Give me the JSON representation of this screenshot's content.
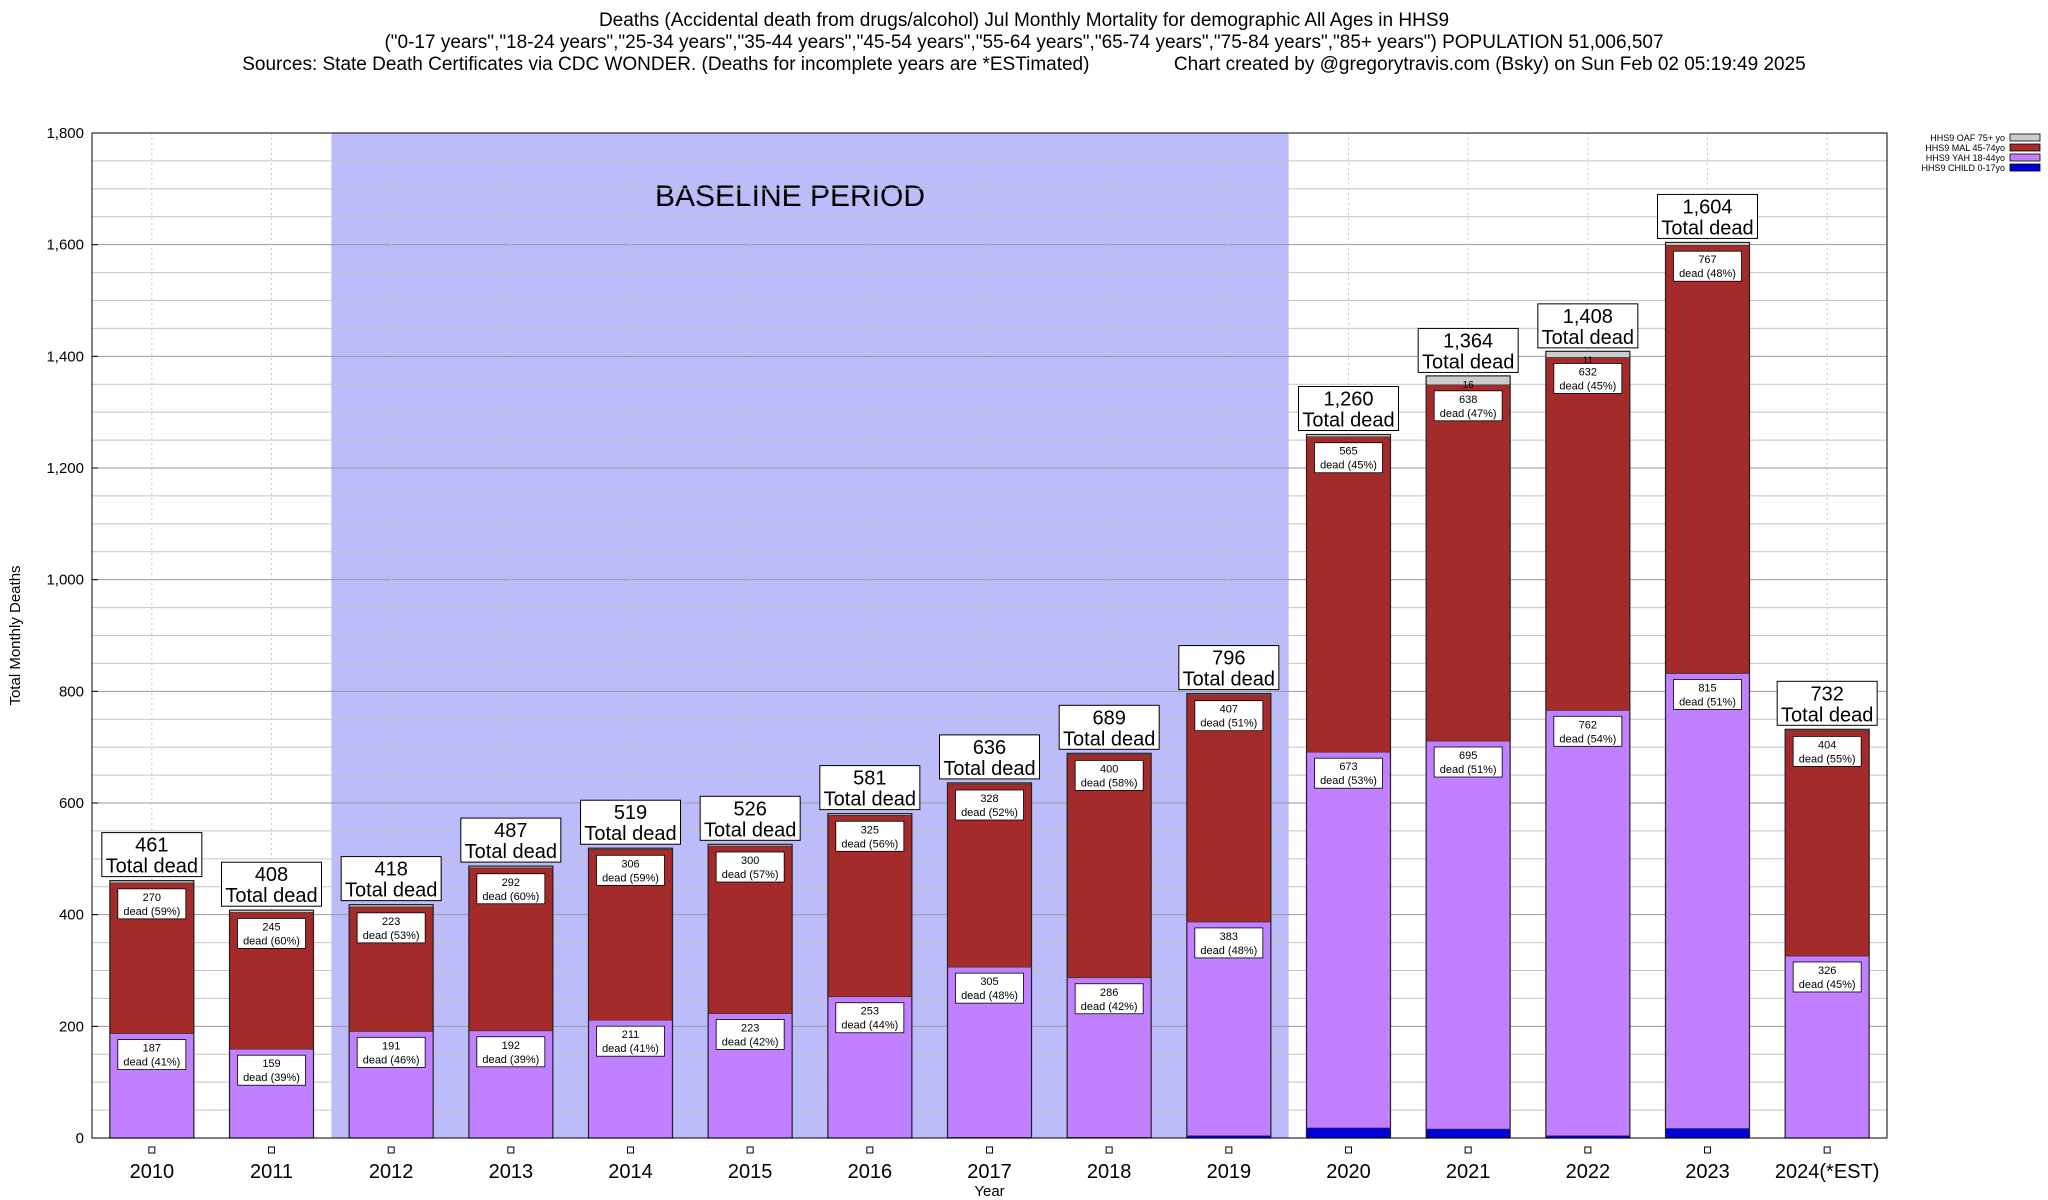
{
  "title": {
    "line1": "Deaths (Accidental death from drugs/alcohol) Jul Monthly Mortality for demographic All Ages in HHS9",
    "line2": "(\"0-17 years\",\"18-24 years\",\"25-34 years\",\"35-44 years\",\"45-54 years\",\"55-64 years\",\"65-74 years\",\"75-84 years\",\"85+ years\") POPULATION 51,006,507",
    "line3": "Sources: State Death Certificates via CDC WONDER. (Deaths for incomplete years are *ESTimated)                Chart created by @gregorytravis.com (Bsky) on Sun Feb 02 05:19:49 2025"
  },
  "chart_data": {
    "type": "bar",
    "stacked": true,
    "xlabel": "Year",
    "ylabel": "Total Monthly Deaths",
    "ylim": [
      0,
      1800
    ],
    "yticks": [
      "0",
      "200",
      "400",
      "600",
      "800",
      "1,000",
      "1,200",
      "1,400",
      "1,600",
      "1,800"
    ],
    "grid": true,
    "legend_position": "top-right",
    "annotation": "BASELINE PERIOD",
    "baseline_range": [
      "2012",
      "2019"
    ],
    "total_suffix": "Total dead",
    "categories": [
      "2010",
      "2011",
      "2012",
      "2013",
      "2014",
      "2015",
      "2016",
      "2017",
      "2018",
      "2019",
      "2020",
      "2021",
      "2022",
      "2023",
      "2024(*EST)"
    ],
    "totals": [
      461,
      408,
      418,
      487,
      519,
      526,
      581,
      636,
      689,
      796,
      1260,
      1364,
      1408,
      1604,
      732
    ],
    "total_labels": [
      "461",
      "408",
      "418",
      "487",
      "519",
      "526",
      "581",
      "636",
      "689",
      "796",
      "1,260",
      "1,364",
      "1,408",
      "1,604",
      "732"
    ],
    "series": [
      {
        "name": "HHS9 CHILD 0-17yo",
        "color": "#0000dd",
        "values": [
          0,
          0,
          0,
          0,
          0,
          0,
          0,
          1,
          1,
          4,
          18,
          16,
          4,
          17,
          0
        ]
      },
      {
        "name": "HHS9 YAH 18-44yo",
        "color": "#c080ff",
        "values": [
          187,
          159,
          191,
          192,
          211,
          223,
          253,
          305,
          286,
          383,
          673,
          695,
          762,
          815,
          326
        ],
        "labels": [
          "dead (41%)",
          "dead (39%)",
          "dead (46%)",
          "dead (39%)",
          "dead (41%)",
          "dead (42%)",
          "dead (44%)",
          "dead (48%)",
          "dead (42%)",
          "dead (48%)",
          "dead (53%)",
          "dead (51%)",
          "dead (54%)",
          "dead (51%)",
          "dead (45%)"
        ]
      },
      {
        "name": "HHS9 MAL 45-74yo",
        "color": "#a52a2a",
        "values": [
          270,
          245,
          223,
          292,
          306,
          300,
          325,
          328,
          400,
          407,
          565,
          638,
          632,
          767,
          404
        ],
        "labels": [
          "dead (59%)",
          "dead (60%)",
          "dead (53%)",
          "dead (60%)",
          "dead (59%)",
          "dead (57%)",
          "dead (56%)",
          "dead (52%)",
          "dead (58%)",
          "dead (51%)",
          "dead (45%)",
          "dead (47%)",
          "dead (45%)",
          "dead (48%)",
          "dead (55%)"
        ]
      },
      {
        "name": "HHS9 OAF 75+ yo",
        "color": "#cccccc",
        "values": [
          4,
          4,
          4,
          3,
          2,
          3,
          3,
          2,
          2,
          2,
          4,
          16,
          11,
          5,
          2
        ],
        "visible_labels": [
          "",
          "",
          "",
          "",
          "",
          "",
          "",
          "",
          "",
          "",
          "",
          "16",
          "11",
          "",
          ""
        ]
      }
    ]
  }
}
